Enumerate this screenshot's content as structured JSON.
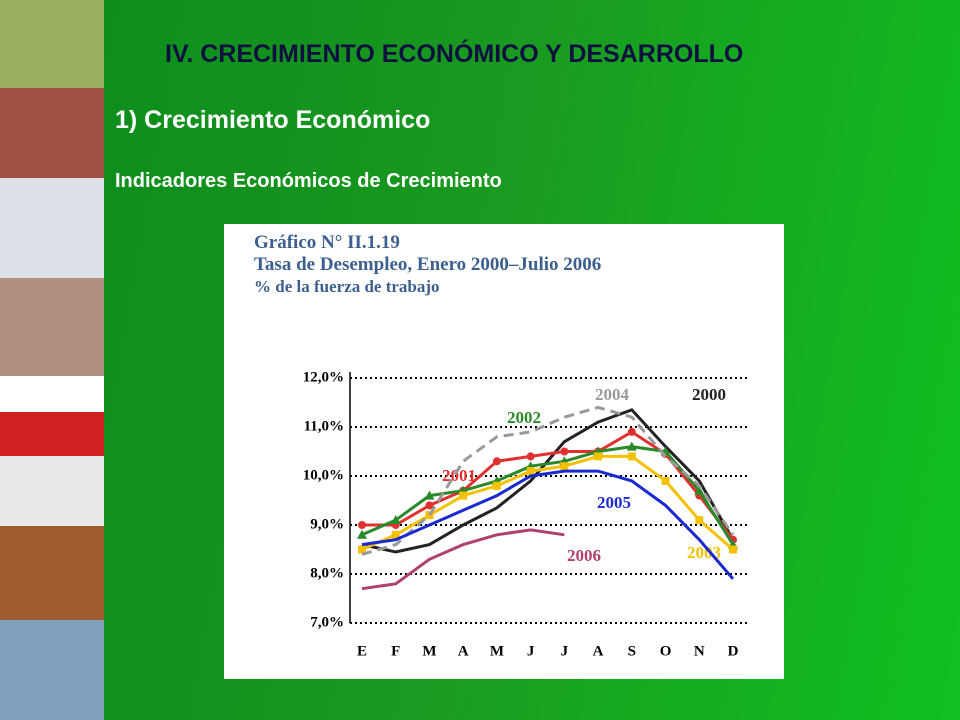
{
  "slide": {
    "title": "IV. CRECIMIENTO ECONÓMICO Y DESARROLLO",
    "subtitle": "1) Crecimiento Económico",
    "heading": "Indicadores Económicos de Crecimiento"
  },
  "chart_data": {
    "type": "line",
    "title": "Gráfico N° II.1.19",
    "subtitle": "Tasa de Desempleo, Enero 2000–Julio 2006",
    "note": "% de la fuerza de trabajo",
    "categories": [
      "E",
      "F",
      "M",
      "A",
      "M",
      "J",
      "J",
      "A",
      "S",
      "O",
      "N",
      "D"
    ],
    "ylim": [
      7.0,
      12.0
    ],
    "yticks": [
      {
        "value": 7.0,
        "label": "7,0%"
      },
      {
        "value": 8.0,
        "label": "8,0%"
      },
      {
        "value": 9.0,
        "label": "9,0%"
      },
      {
        "value": 10.0,
        "label": "10,0%"
      },
      {
        "value": 11.0,
        "label": "11,0%"
      },
      {
        "value": 12.0,
        "label": "12,0%"
      }
    ],
    "grid": true,
    "series": [
      {
        "name": "2000",
        "color": "#222222",
        "values": [
          8.6,
          8.45,
          8.6,
          9.0,
          9.35,
          9.9,
          10.7,
          11.1,
          11.35,
          10.6,
          9.9,
          8.7
        ]
      },
      {
        "name": "2001",
        "color": "#e03030",
        "marker": "circle",
        "values": [
          9.0,
          9.0,
          9.4,
          9.7,
          10.3,
          10.4,
          10.5,
          10.5,
          10.9,
          10.45,
          9.6,
          8.7
        ]
      },
      {
        "name": "2002",
        "color": "#2a8a2a",
        "marker": "triangle",
        "values": [
          8.8,
          9.1,
          9.6,
          9.7,
          9.9,
          10.2,
          10.3,
          10.5,
          10.6,
          10.5,
          9.7,
          8.6
        ]
      },
      {
        "name": "2003",
        "color": "#f5c000",
        "marker": "square",
        "values": [
          8.5,
          8.8,
          9.2,
          9.6,
          9.8,
          10.1,
          10.2,
          10.4,
          10.4,
          9.9,
          9.1,
          8.5
        ]
      },
      {
        "name": "2004",
        "color": "#999999",
        "dashed": true,
        "values": [
          8.4,
          8.6,
          9.2,
          10.3,
          10.8,
          10.9,
          11.2,
          11.4,
          11.2,
          10.4,
          9.8,
          8.8
        ]
      },
      {
        "name": "2005",
        "color": "#1a2ad0",
        "values": [
          8.6,
          8.7,
          9.0,
          9.3,
          9.6,
          10.0,
          10.1,
          10.1,
          9.9,
          9.4,
          8.7,
          7.9
        ]
      },
      {
        "name": "2006",
        "color": "#b04070",
        "values": [
          7.7,
          7.8,
          8.3,
          8.6,
          8.8,
          8.9,
          8.8,
          null,
          null,
          null,
          null,
          null
        ]
      }
    ]
  }
}
